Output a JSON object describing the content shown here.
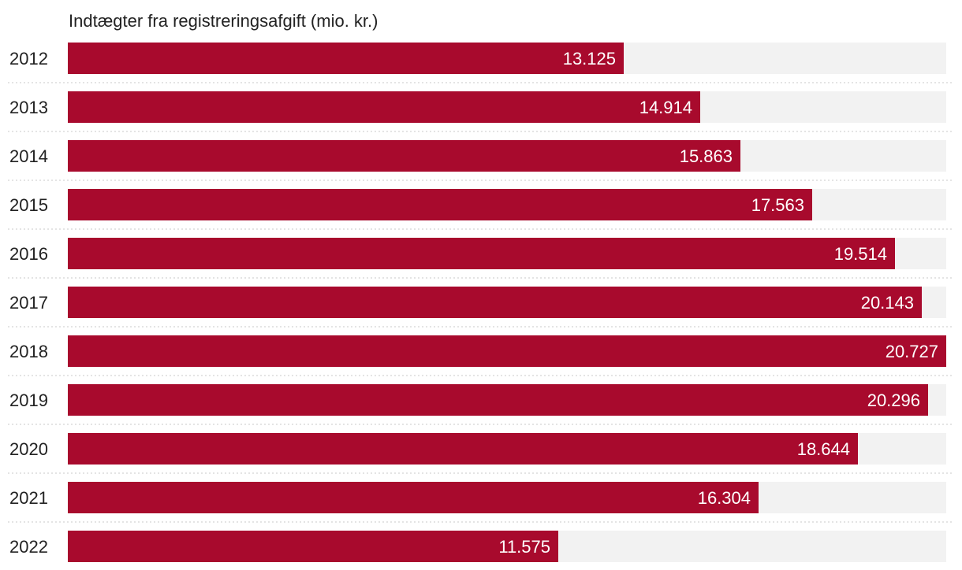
{
  "chart_data": {
    "type": "bar",
    "orientation": "horizontal",
    "title": "Indtægter fra registreringsafgift (mio. kr.)",
    "xlabel": "",
    "ylabel": "",
    "xlim": [
      0,
      20727
    ],
    "grid": false,
    "categories": [
      "2012",
      "2013",
      "2014",
      "2015",
      "2016",
      "2017",
      "2018",
      "2019",
      "2020",
      "2021",
      "2022"
    ],
    "values": [
      13125,
      14914,
      15863,
      17563,
      19514,
      20143,
      20727,
      20296,
      18644,
      16304,
      11575
    ],
    "value_labels": [
      "13.125",
      "14.914",
      "15.863",
      "17.563",
      "19.514",
      "20.143",
      "20.727",
      "20.296",
      "18.644",
      "16.304",
      "11.575"
    ]
  },
  "colors": {
    "bar": "#a80a2d",
    "track": "#f2f2f2",
    "separator": "#c8c8c8",
    "label": "#222222",
    "value_text": "#ffffff"
  }
}
